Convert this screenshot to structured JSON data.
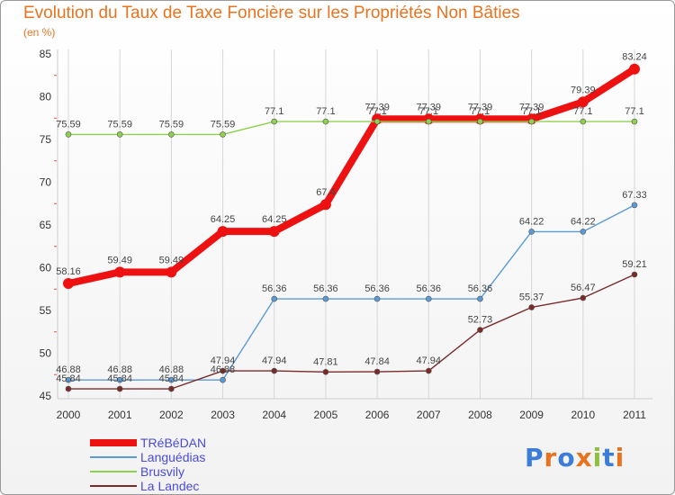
{
  "chart_data": {
    "type": "line",
    "title": "Evolution du Taux de Taxe Foncière sur les Propriétés Non Bâties",
    "subtitle": "(en %)",
    "categories": [
      "2000",
      "2001",
      "2002",
      "2003",
      "2004",
      "2005",
      "2006",
      "2007",
      "2008",
      "2009",
      "2010",
      "2011"
    ],
    "ylim": [
      45,
      85
    ],
    "yticks": [
      45,
      50,
      55,
      60,
      65,
      70,
      75,
      80,
      85
    ],
    "series": [
      {
        "name": "TRéBéDAN",
        "color": "#ee1111",
        "values": [
          58.16,
          59.49,
          59.49,
          64.25,
          64.25,
          67.4,
          77.39,
          77.39,
          77.39,
          77.39,
          79.39,
          83.24
        ],
        "labels": [
          "58.16",
          "59.49",
          "59.49",
          "64.25",
          "64.25",
          "67.4",
          "77.39",
          "77.39",
          "77.39",
          "77.39",
          "79.39",
          "83.24"
        ]
      },
      {
        "name": "Languédias",
        "color": "#5b9bd5",
        "values": [
          46.88,
          46.88,
          46.88,
          46.88,
          56.36,
          56.36,
          56.36,
          56.36,
          56.36,
          64.22,
          64.22,
          67.33
        ],
        "labels": [
          "46.88",
          "46.88",
          "46.88",
          "46.88",
          "56.36",
          "56.36",
          "56.36",
          "56.36",
          "56.36",
          "64.22",
          "64.22",
          "67.33"
        ]
      },
      {
        "name": "Brusvily",
        "color": "#8fd14f",
        "values": [
          75.59,
          75.59,
          75.59,
          75.59,
          77.1,
          77.1,
          77.1,
          77.1,
          77.1,
          77.1,
          77.1,
          77.1
        ],
        "labels": [
          "75.59",
          "75.59",
          "75.59",
          "75.59",
          "77.1",
          "77.1",
          "77.1",
          "77.1",
          "77.1",
          "77.1",
          "77.1",
          "77.1"
        ]
      },
      {
        "name": "La Landec",
        "color": "#7b2a2a",
        "values": [
          45.84,
          45.84,
          45.84,
          47.94,
          47.94,
          47.81,
          47.84,
          47.94,
          52.73,
          55.37,
          56.47,
          59.21
        ],
        "labels": [
          "45.84",
          "45.84",
          "45.84",
          "47.94",
          "47.94",
          "47.81",
          "47.84",
          "47.94",
          "52.73",
          "55.37",
          "56.47",
          "59.21"
        ]
      }
    ]
  },
  "logo": {
    "letters": [
      "P",
      "r",
      "o",
      "x",
      "i",
      "t",
      "i"
    ],
    "colors": [
      "#3b7dd8",
      "#e8731f",
      "#3b7dd8",
      "#e8731f",
      "#8fbf3f",
      "#3b7dd8",
      "#e8731f"
    ]
  }
}
